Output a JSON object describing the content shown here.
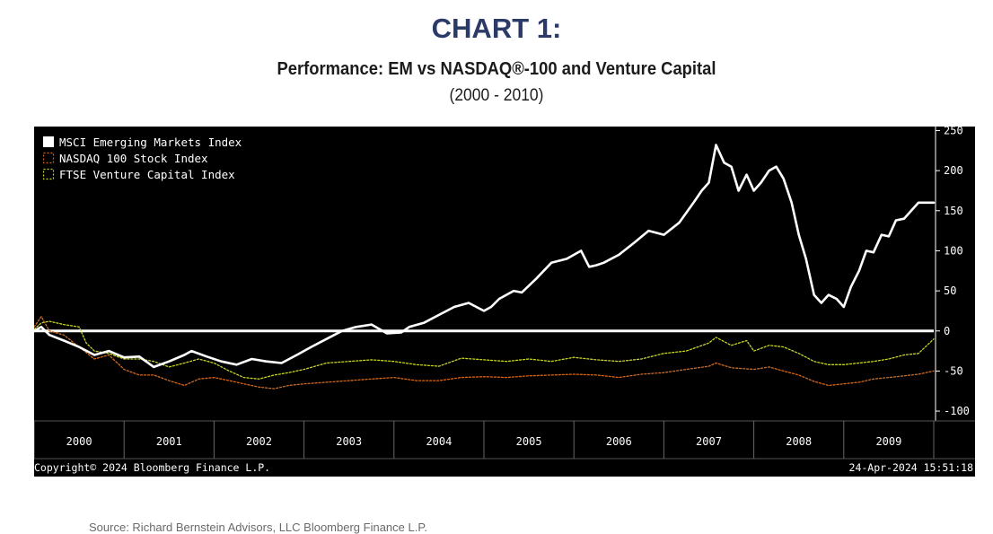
{
  "header": {
    "heading": "CHART 1:",
    "title": "Performance: EM vs NASDAQ®-100 and Venture Capital",
    "period": "(2000 - 2010)"
  },
  "footer": {
    "copyright": "Copyright© 2024 Bloomberg Finance L.P.",
    "timestamp": "24-Apr-2024 15:51:18",
    "source": "Source: Richard Bernstein Advisors, LLC Bloomberg Finance L.P."
  },
  "colors": {
    "background": "#000000",
    "msci": "#ffffff",
    "nasdaq": "#d2691e",
    "ftse": "#c8d42a",
    "zero_line": "#ffffff",
    "heading": "#2b3a67"
  },
  "chart_data": {
    "type": "line",
    "legend_position": "top-left",
    "ylim": [
      -110,
      255
    ],
    "xlim": [
      2000.0,
      2010.0
    ],
    "yticks": [
      250,
      200,
      150,
      100,
      50,
      0,
      -50,
      -100
    ],
    "xticks": [
      "2000",
      "2001",
      "2002",
      "2003",
      "2004",
      "2005",
      "2006",
      "2007",
      "2008",
      "2009"
    ],
    "series": [
      {
        "name": "MSCI Emerging Markets Index",
        "key": "msci",
        "x": [
          2000.0,
          2000.08,
          2000.17,
          2000.33,
          2000.5,
          2000.67,
          2000.83,
          2001.0,
          2001.17,
          2001.33,
          2001.5,
          2001.67,
          2001.75,
          2001.92,
          2002.08,
          2002.25,
          2002.42,
          2002.58,
          2002.75,
          2002.92,
          2003.08,
          2003.25,
          2003.42,
          2003.58,
          2003.75,
          2003.92,
          2004.08,
          2004.17,
          2004.33,
          2004.5,
          2004.67,
          2004.83,
          2005.0,
          2005.08,
          2005.17,
          2005.33,
          2005.42,
          2005.58,
          2005.75,
          2005.92,
          2006.08,
          2006.17,
          2006.25,
          2006.33,
          2006.5,
          2006.67,
          2006.83,
          2007.0,
          2007.17,
          2007.33,
          2007.42,
          2007.5,
          2007.58,
          2007.67,
          2007.75,
          2007.83,
          2007.92,
          2008.0,
          2008.08,
          2008.17,
          2008.25,
          2008.33,
          2008.42,
          2008.5,
          2008.58,
          2008.67,
          2008.75,
          2008.83,
          2008.92,
          2009.0,
          2009.08,
          2009.17,
          2009.25,
          2009.33,
          2009.42,
          2009.5,
          2009.58,
          2009.67,
          2009.75,
          2009.83,
          2009.92,
          2010.0
        ],
        "values": [
          0,
          5,
          -5,
          -12,
          -20,
          -30,
          -25,
          -33,
          -32,
          -45,
          -38,
          -30,
          -25,
          -32,
          -38,
          -42,
          -35,
          -38,
          -40,
          -30,
          -20,
          -10,
          0,
          5,
          8,
          -3,
          -2,
          5,
          10,
          20,
          30,
          35,
          25,
          30,
          40,
          50,
          48,
          65,
          85,
          90,
          100,
          80,
          82,
          85,
          95,
          110,
          125,
          120,
          135,
          160,
          175,
          185,
          232,
          210,
          205,
          175,
          195,
          175,
          185,
          200,
          205,
          190,
          160,
          120,
          90,
          45,
          35,
          45,
          40,
          30,
          55,
          75,
          100,
          98,
          120,
          118,
          138,
          140,
          150,
          160,
          160,
          160
        ]
      },
      {
        "name": "NASDAQ 100 Stock Index",
        "key": "nasdaq",
        "x": [
          2000.0,
          2000.08,
          2000.17,
          2000.33,
          2000.5,
          2000.67,
          2000.83,
          2001.0,
          2001.17,
          2001.33,
          2001.5,
          2001.67,
          2001.83,
          2002.0,
          2002.17,
          2002.33,
          2002.5,
          2002.67,
          2002.83,
          2003.0,
          2003.25,
          2003.5,
          2003.75,
          2004.0,
          2004.25,
          2004.5,
          2004.75,
          2005.0,
          2005.25,
          2005.5,
          2005.75,
          2006.0,
          2006.25,
          2006.5,
          2006.75,
          2007.0,
          2007.25,
          2007.5,
          2007.58,
          2007.75,
          2008.0,
          2008.17,
          2008.33,
          2008.5,
          2008.67,
          2008.83,
          2009.0,
          2009.17,
          2009.33,
          2009.5,
          2009.67,
          2009.83,
          2010.0
        ],
        "values": [
          5,
          18,
          0,
          -5,
          -20,
          -35,
          -30,
          -48,
          -55,
          -55,
          -62,
          -68,
          -60,
          -58,
          -62,
          -66,
          -70,
          -72,
          -68,
          -66,
          -64,
          -62,
          -60,
          -58,
          -62,
          -62,
          -58,
          -57,
          -58,
          -56,
          -55,
          -54,
          -55,
          -58,
          -54,
          -52,
          -48,
          -44,
          -40,
          -46,
          -48,
          -45,
          -50,
          -55,
          -63,
          -68,
          -66,
          -64,
          -60,
          -58,
          -56,
          -54,
          -50
        ]
      },
      {
        "name": "FTSE Venture Capital Index",
        "key": "ftse",
        "x": [
          2000.0,
          2000.08,
          2000.17,
          2000.33,
          2000.5,
          2000.58,
          2000.67,
          2000.83,
          2001.0,
          2001.17,
          2001.33,
          2001.5,
          2001.67,
          2001.83,
          2002.0,
          2002.17,
          2002.33,
          2002.5,
          2002.67,
          2002.83,
          2003.0,
          2003.25,
          2003.5,
          2003.75,
          2004.0,
          2004.25,
          2004.5,
          2004.75,
          2005.0,
          2005.25,
          2005.5,
          2005.75,
          2006.0,
          2006.25,
          2006.5,
          2006.75,
          2007.0,
          2007.25,
          2007.5,
          2007.58,
          2007.75,
          2007.92,
          2008.0,
          2008.17,
          2008.33,
          2008.5,
          2008.67,
          2008.83,
          2009.0,
          2009.17,
          2009.33,
          2009.5,
          2009.67,
          2009.83,
          2010.0
        ],
        "values": [
          2,
          10,
          12,
          8,
          5,
          -15,
          -25,
          -28,
          -35,
          -35,
          -38,
          -45,
          -40,
          -35,
          -40,
          -50,
          -58,
          -60,
          -55,
          -52,
          -48,
          -40,
          -38,
          -36,
          -38,
          -42,
          -44,
          -34,
          -36,
          -38,
          -35,
          -38,
          -33,
          -36,
          -38,
          -35,
          -28,
          -25,
          -15,
          -8,
          -18,
          -12,
          -25,
          -18,
          -20,
          -28,
          -38,
          -42,
          -42,
          -40,
          -38,
          -35,
          -30,
          -28,
          -10
        ]
      }
    ]
  }
}
